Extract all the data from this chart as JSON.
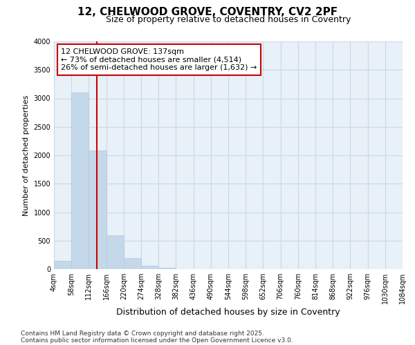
{
  "title": "12, CHELWOOD GROVE, COVENTRY, CV2 2PF",
  "subtitle": "Size of property relative to detached houses in Coventry",
  "xlabel": "Distribution of detached houses by size in Coventry",
  "ylabel": "Number of detached properties",
  "footnote1": "Contains HM Land Registry data © Crown copyright and database right 2025.",
  "footnote2": "Contains public sector information licensed under the Open Government Licence v3.0.",
  "annotation_title": "12 CHELWOOD GROVE: 137sqm",
  "annotation_line1": "← 73% of detached houses are smaller (4,514)",
  "annotation_line2": "26% of semi-detached houses are larger (1,632) →",
  "property_size": 137,
  "bar_color": "#c5d8ea",
  "bar_edge_color": "#b0c8de",
  "vline_color": "#cc0000",
  "annotation_box_color": "#cc0000",
  "grid_color": "#c8d8e8",
  "bg_color": "#e8f0f8",
  "bin_edges": [
    4,
    58,
    112,
    166,
    220,
    274,
    328,
    382,
    436,
    490,
    544,
    598,
    652,
    706,
    760,
    814,
    868,
    922,
    976,
    1030,
    1084
  ],
  "bar_heights": [
    150,
    3100,
    2080,
    590,
    200,
    60,
    30,
    0,
    0,
    0,
    0,
    0,
    0,
    0,
    0,
    0,
    0,
    0,
    0,
    0
  ],
  "ylim": [
    0,
    4000
  ],
  "yticks": [
    0,
    500,
    1000,
    1500,
    2000,
    2500,
    3000,
    3500,
    4000
  ],
  "title_fontsize": 11,
  "subtitle_fontsize": 9,
  "ylabel_fontsize": 8,
  "xlabel_fontsize": 9,
  "tick_fontsize": 7,
  "annotation_fontsize": 8,
  "footnote_fontsize": 6.5
}
